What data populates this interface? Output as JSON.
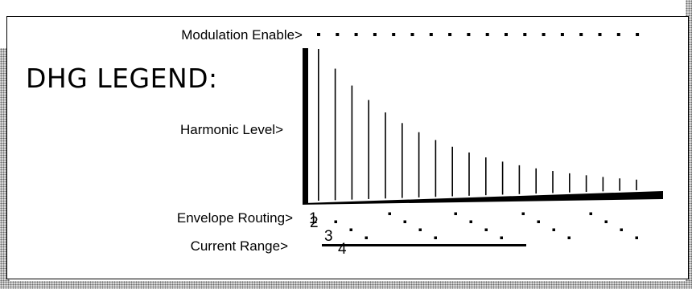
{
  "legend": {
    "title": "DHG LEGEND:",
    "labels": {
      "modulation": "Modulation Enable>",
      "harmonic": "Harmonic Level>",
      "envelope": "Envelope Routing>",
      "current": "Current Range>"
    },
    "envelope_numbers": [
      "1",
      "2",
      "3",
      "4"
    ]
  },
  "colors": {
    "ink": "#000000",
    "stipple": "#d8d8d8"
  }
}
